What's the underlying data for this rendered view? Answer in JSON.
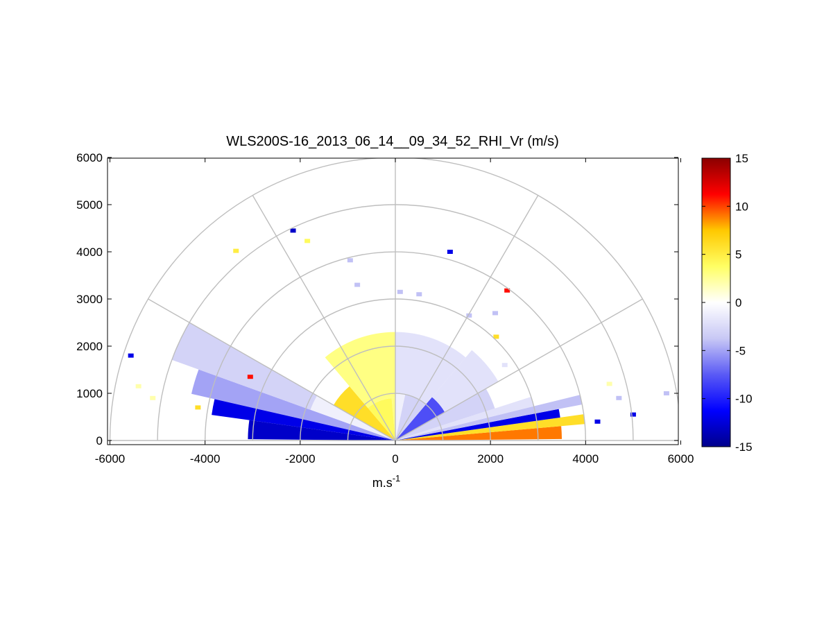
{
  "chart_data": {
    "type": "heatmap",
    "title": "WLS200S-16_2013_06_14__09_34_52_RHI_Vr (m/s)",
    "xlabel": "m.s",
    "xlabel_superscript": "-1",
    "ylabel": "",
    "xlim": [
      -6000,
      6000
    ],
    "ylim": [
      0,
      6000
    ],
    "x_ticks": [
      "-6000",
      "-4000",
      "-2000",
      "0",
      "2000",
      "4000",
      "6000"
    ],
    "x_tick_values": [
      -6000,
      -4000,
      -2000,
      0,
      2000,
      4000,
      6000
    ],
    "y_ticks": [
      "0",
      "1000",
      "2000",
      "3000",
      "4000",
      "5000",
      "6000"
    ],
    "y_tick_values": [
      0,
      1000,
      2000,
      3000,
      4000,
      5000,
      6000
    ],
    "polar_grid": {
      "range_rings": [
        1000,
        2000,
        3000,
        4000,
        5000,
        6000
      ],
      "spokes_deg": [
        0,
        30,
        60,
        90,
        120,
        150,
        180
      ]
    },
    "colorbar": {
      "min": -15,
      "max": 15,
      "ticks": [
        "15",
        "10",
        "5",
        "0",
        "-5",
        "-10",
        "-15"
      ],
      "tick_values": [
        15,
        10,
        5,
        0,
        -5,
        -10,
        -15
      ],
      "colors": [
        "#00008b",
        "#0000ff",
        "#5a5af5",
        "#c8c8f5",
        "#ffffff",
        "#ffff64",
        "#ffc800",
        "#ff0000",
        "#8b0000"
      ]
    },
    "sectors": [
      {
        "elev_start": 0.5,
        "elev_end": 5,
        "range_start": 0,
        "range_end": 3500,
        "value": 9
      },
      {
        "elev_start": 5,
        "elev_end": 8,
        "range_start": 0,
        "range_end": 4000,
        "value": 6
      },
      {
        "elev_start": 8,
        "elev_end": 11,
        "range_start": 0,
        "range_end": 3500,
        "value": -12
      },
      {
        "elev_start": 11,
        "elev_end": 14,
        "range_start": 0,
        "range_end": 4000,
        "value": -4
      },
      {
        "elev_start": 14,
        "elev_end": 18,
        "range_start": 0,
        "range_end": 3000,
        "value": -2
      },
      {
        "elev_start": 18,
        "elev_end": 30,
        "range_start": 0,
        "range_end": 2200,
        "value": -3
      },
      {
        "elev_start": 30,
        "elev_end": 50,
        "range_start": 0,
        "range_end": 1200,
        "value": -8
      },
      {
        "elev_start": 50,
        "elev_end": 78,
        "range_start": 0,
        "range_end": 1000,
        "value": -3
      },
      {
        "elev_start": 78,
        "elev_end": 90,
        "range_start": 0,
        "range_end": 1000,
        "value": -1
      },
      {
        "elev_start": 90,
        "elev_end": 95,
        "range_start": 0,
        "range_end": 900,
        "value": 3
      },
      {
        "elev_start": 95,
        "elev_end": 130,
        "range_start": 0,
        "range_end": 900,
        "value": 4
      },
      {
        "elev_start": 130,
        "elev_end": 150,
        "range_start": 0,
        "range_end": 1500,
        "value": 6
      },
      {
        "elev_start": 150,
        "elev_end": 160,
        "range_start": 0,
        "range_end": 1900,
        "value": -1
      },
      {
        "elev_start": 160,
        "elev_end": 167,
        "range_start": 0,
        "range_end": 4400,
        "value": -5
      },
      {
        "elev_start": 167,
        "elev_end": 172,
        "range_start": 0,
        "range_end": 3900,
        "value": -12
      },
      {
        "elev_start": 172,
        "elev_end": 179.5,
        "range_start": 0,
        "range_end": 3100,
        "value": -13
      },
      {
        "elev_start": 90,
        "elev_end": 130,
        "range_start": 900,
        "range_end": 2300,
        "value": 3
      },
      {
        "elev_start": 50,
        "elev_end": 90,
        "range_start": 1000,
        "range_end": 2300,
        "value": -2
      },
      {
        "elev_start": 30,
        "elev_end": 50,
        "range_start": 1200,
        "range_end": 2500,
        "value": -2
      },
      {
        "elev_start": 150,
        "elev_end": 160,
        "range_start": 1900,
        "range_end": 5000,
        "value": -3
      }
    ],
    "points": [
      {
        "x": -5560,
        "y": 1800,
        "value": -12
      },
      {
        "x": -5400,
        "y": 1150,
        "value": 2
      },
      {
        "x": -5100,
        "y": 900,
        "value": 2
      },
      {
        "x": -4150,
        "y": 700,
        "value": 6
      },
      {
        "x": -3350,
        "y": 4020,
        "value": 5
      },
      {
        "x": -3050,
        "y": 1350,
        "value": 11
      },
      {
        "x": -2150,
        "y": 4450,
        "value": -13
      },
      {
        "x": -1850,
        "y": 4230,
        "value": 4
      },
      {
        "x": -950,
        "y": 3820,
        "value": -4
      },
      {
        "x": -800,
        "y": 3300,
        "value": -4
      },
      {
        "x": 100,
        "y": 3150,
        "value": -4
      },
      {
        "x": 500,
        "y": 3100,
        "value": -4
      },
      {
        "x": 1150,
        "y": 4000,
        "value": -12
      },
      {
        "x": 1550,
        "y": 2650,
        "value": -4
      },
      {
        "x": 2100,
        "y": 2700,
        "value": -4
      },
      {
        "x": 2350,
        "y": 3180,
        "value": 11
      },
      {
        "x": 2120,
        "y": 2200,
        "value": 6
      },
      {
        "x": 2300,
        "y": 1600,
        "value": -2
      },
      {
        "x": 4500,
        "y": 1200,
        "value": 2
      },
      {
        "x": 4250,
        "y": 400,
        "value": -12
      },
      {
        "x": 5000,
        "y": 550,
        "value": -12
      },
      {
        "x": 5700,
        "y": 1000,
        "value": -4
      },
      {
        "x": 4700,
        "y": 900,
        "value": -4
      }
    ]
  }
}
